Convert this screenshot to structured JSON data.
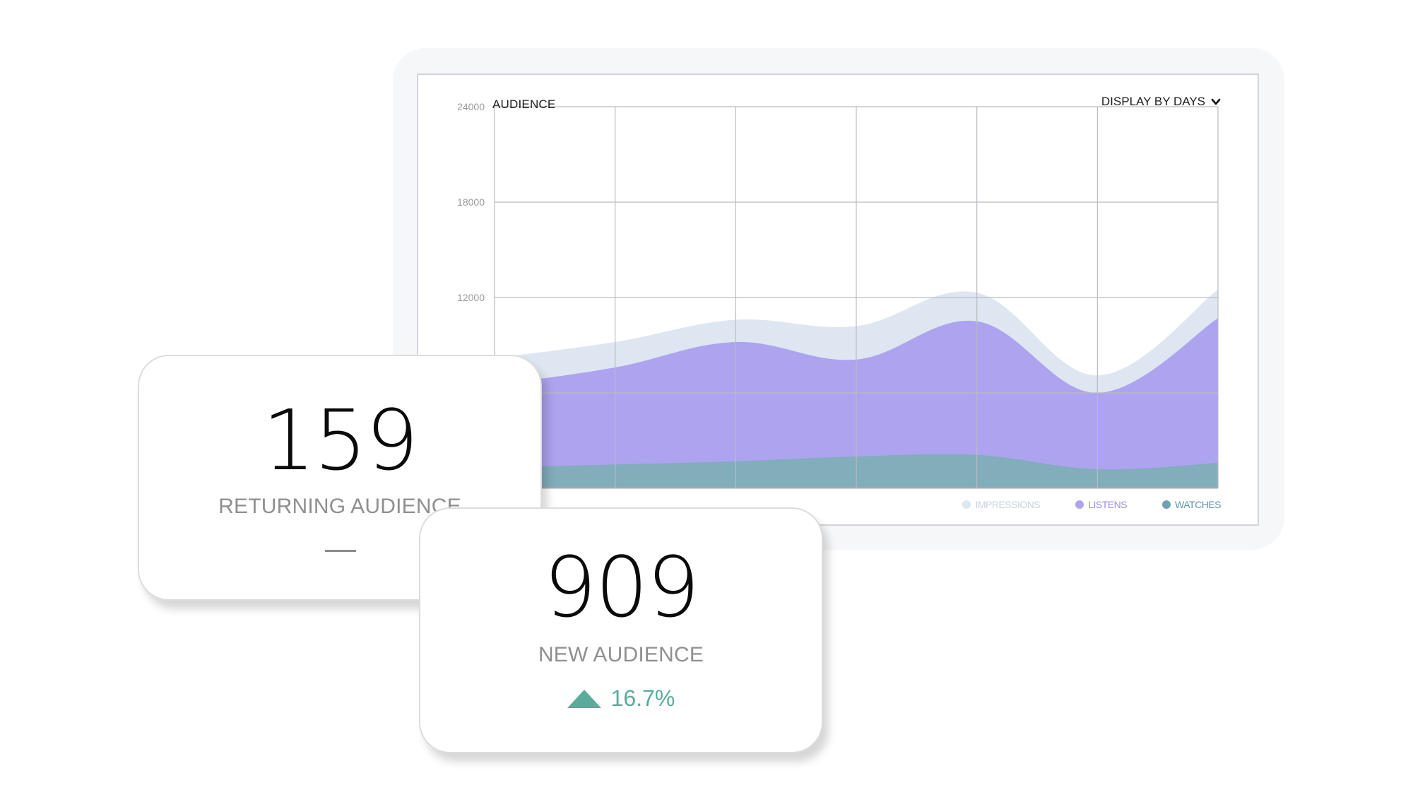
{
  "chart_card": {
    "title": "AUDIENCE",
    "display_selector": {
      "label": "DISPLAY BY DAYS",
      "icon": "chevron-down-icon"
    }
  },
  "chart_data": {
    "type": "area",
    "title": "AUDIENCE",
    "xlabel": "",
    "ylabel": "",
    "y_ticks": [
      "24000",
      "18000",
      "12000"
    ],
    "ylim": [
      0,
      24000
    ],
    "grid": true,
    "legend_position": "bottom-right",
    "x": [
      0,
      1,
      2,
      3,
      4,
      5,
      6
    ],
    "series": [
      {
        "name": "IMPRESSIONS",
        "color": "#dde6f1",
        "values": [
          8200,
          9200,
          10600,
          10200,
          12300,
          7100,
          12500
        ]
      },
      {
        "name": "LISTENS",
        "color": "#ada3ef",
        "values": [
          6500,
          7600,
          9200,
          8100,
          10500,
          6000,
          10700
        ]
      },
      {
        "name": "WATCHES",
        "color": "#82adbb",
        "values": [
          1300,
          1500,
          1700,
          2000,
          2100,
          1200,
          1600
        ]
      }
    ]
  },
  "legend": [
    {
      "label": "IMPRESSIONS",
      "color": "#dde6f1",
      "text_color": "#c8d2e0"
    },
    {
      "label": "LISTENS",
      "color": "#ada3ef",
      "text_color": "#9b8fe8"
    },
    {
      "label": "WATCHES",
      "color": "#6fa3b0",
      "text_color": "#5f96a4"
    }
  ],
  "cards": {
    "returning": {
      "value": "159",
      "label": "RETURNING AUDIENCE"
    },
    "new": {
      "value": "909",
      "label": "NEW AUDIENCE",
      "change": "16.7%",
      "change_icon": "up-triangle-icon",
      "change_color": "#5aab9c"
    }
  }
}
